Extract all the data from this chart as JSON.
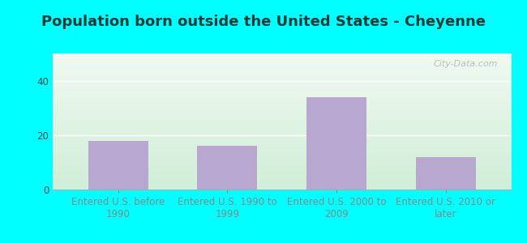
{
  "title": "Population born outside the United States - Cheyenne",
  "categories": [
    "Entered U.S. before\n1990",
    "Entered U.S. 1990 to\n1999",
    "Entered U.S. 2000 to\n2009",
    "Entered U.S. 2010 or\nlater"
  ],
  "values": [
    18,
    16,
    34,
    12
  ],
  "bar_color": "#b8a8d0",
  "ylim": [
    0,
    50
  ],
  "yticks": [
    0,
    20,
    40
  ],
  "title_fontsize": 13,
  "tick_fontsize": 8.5,
  "background_outer": "#00ffff",
  "background_inner_top": "#f0faf0",
  "background_inner_bottom": "#d0eed8",
  "grid_color": "#dddddd",
  "watermark": "City-Data.com",
  "title_color": "#1a3a3a"
}
